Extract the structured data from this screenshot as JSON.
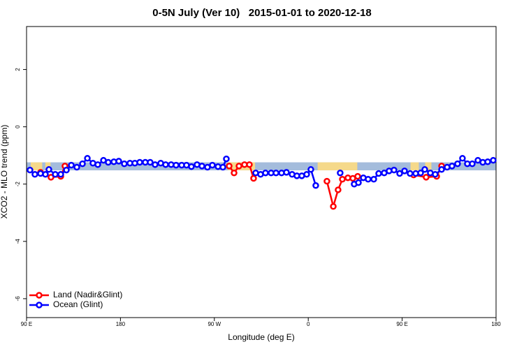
{
  "chart_data": {
    "type": "line",
    "title": "0-5N July (Ver 10)   2015-01-01 to 2020-12-18",
    "x_label": "Longitude (deg E)",
    "y_label": "XCO2 - MLO trend (ppm)",
    "xlim": [
      90,
      540
    ],
    "xticks": [
      {
        "value": 90,
        "label": "90 E"
      },
      {
        "value": 180,
        "label": "180"
      },
      {
        "value": 270,
        "label": "90 W"
      },
      {
        "value": 360,
        "label": "0"
      },
      {
        "value": 450,
        "label": "90 E"
      },
      {
        "value": 540,
        "label": "180"
      }
    ],
    "ylim": [
      -6.66,
      3.5
    ],
    "yticks": [
      -6,
      -4,
      -2,
      0,
      2
    ],
    "legend": "bottom-left",
    "band": {
      "ylim": [
        -1.52,
        -1.24
      ],
      "color": "#a4bcdc"
    },
    "land_spans": {
      "color": "#f5d98a",
      "spans": [
        [
          94,
          105
        ],
        [
          108,
          113
        ],
        [
          283,
          309
        ],
        [
          369,
          407
        ],
        [
          458,
          466
        ],
        [
          472,
          478
        ]
      ]
    },
    "series": [
      {
        "name": "Land (Nadir&Glint)",
        "color": "#ff0000",
        "x": [
          103.4,
          113.4,
          122.8,
          126.8,
          null,
          284.2,
          288.9,
          293.6,
          298.9,
          303.6,
          307.6,
          null,
          377.9,
          384.0,
          388.6,
          392.7,
          398.0,
          402.7,
          407.4,
          null,
          461.0,
          473.0,
          483.1,
          487.8
        ],
        "values": [
          -1.59,
          -1.76,
          -1.73,
          -1.37,
          null,
          -1.37,
          -1.61,
          -1.37,
          -1.32,
          -1.32,
          -1.8,
          null,
          -1.9,
          -2.78,
          -2.2,
          -1.83,
          -1.78,
          -1.8,
          -1.73,
          null,
          -1.68,
          -1.76,
          -1.73,
          -1.37
        ]
      },
      {
        "name": "Ocean (Glint)",
        "color": "#0000ff",
        "x": [
          93.3,
          98.0,
          103.4,
          108.1,
          111.4,
          117.5,
          122.8,
          128.2,
          132.9,
          138.2,
          143.6,
          148.3,
          153.6,
          158.3,
          163.7,
          168.3,
          173.7,
          178.4,
          183.7,
          189.1,
          193.8,
          198.5,
          203.8,
          208.5,
          213.2,
          218.6,
          223.3,
          228.6,
          233.3,
          238.7,
          243.3,
          248.0,
          253.4,
          258.1,
          263.4,
          268.1,
          273.5,
          278.2,
          281.5,
          null,
          309.6,
          314.3,
          319.0,
          324.4,
          329.1,
          334.4,
          339.1,
          344.5,
          349.1,
          353.8,
          358.5,
          362.5,
          367.2,
          null,
          390.6,
          null,
          404.0,
          408.1,
          412.8,
          417.4,
          422.8,
          427.5,
          432.8,
          437.5,
          442.2,
          447.6,
          452.3,
          457.6,
          463.0,
          467.7,
          471.7,
          477.0,
          481.7,
          487.8,
          493.1,
          497.8,
          503.1,
          507.8,
          512.5,
          517.2,
          522.6,
          527.3,
          532.0,
          537.3
        ],
        "values": [
          -1.51,
          -1.66,
          -1.63,
          -1.66,
          -1.49,
          -1.66,
          -1.66,
          -1.51,
          -1.34,
          -1.41,
          -1.29,
          -1.1,
          -1.27,
          -1.32,
          -1.17,
          -1.24,
          -1.22,
          -1.2,
          -1.29,
          -1.27,
          -1.27,
          -1.24,
          -1.24,
          -1.24,
          -1.32,
          -1.27,
          -1.32,
          -1.32,
          -1.34,
          -1.34,
          -1.34,
          -1.39,
          -1.32,
          -1.37,
          -1.41,
          -1.34,
          -1.39,
          -1.41,
          -1.12,
          null,
          -1.61,
          -1.66,
          -1.61,
          -1.61,
          -1.61,
          -1.61,
          -1.59,
          -1.66,
          -1.71,
          -1.71,
          -1.66,
          -1.49,
          -2.05,
          null,
          -1.61,
          null,
          -2.0,
          -1.95,
          -1.78,
          -1.83,
          -1.83,
          -1.63,
          -1.61,
          -1.54,
          -1.51,
          -1.63,
          -1.54,
          -1.63,
          -1.63,
          -1.61,
          -1.49,
          -1.61,
          -1.66,
          -1.49,
          -1.41,
          -1.37,
          -1.29,
          -1.1,
          -1.29,
          -1.29,
          -1.17,
          -1.24,
          -1.22,
          -1.17
        ]
      }
    ]
  }
}
